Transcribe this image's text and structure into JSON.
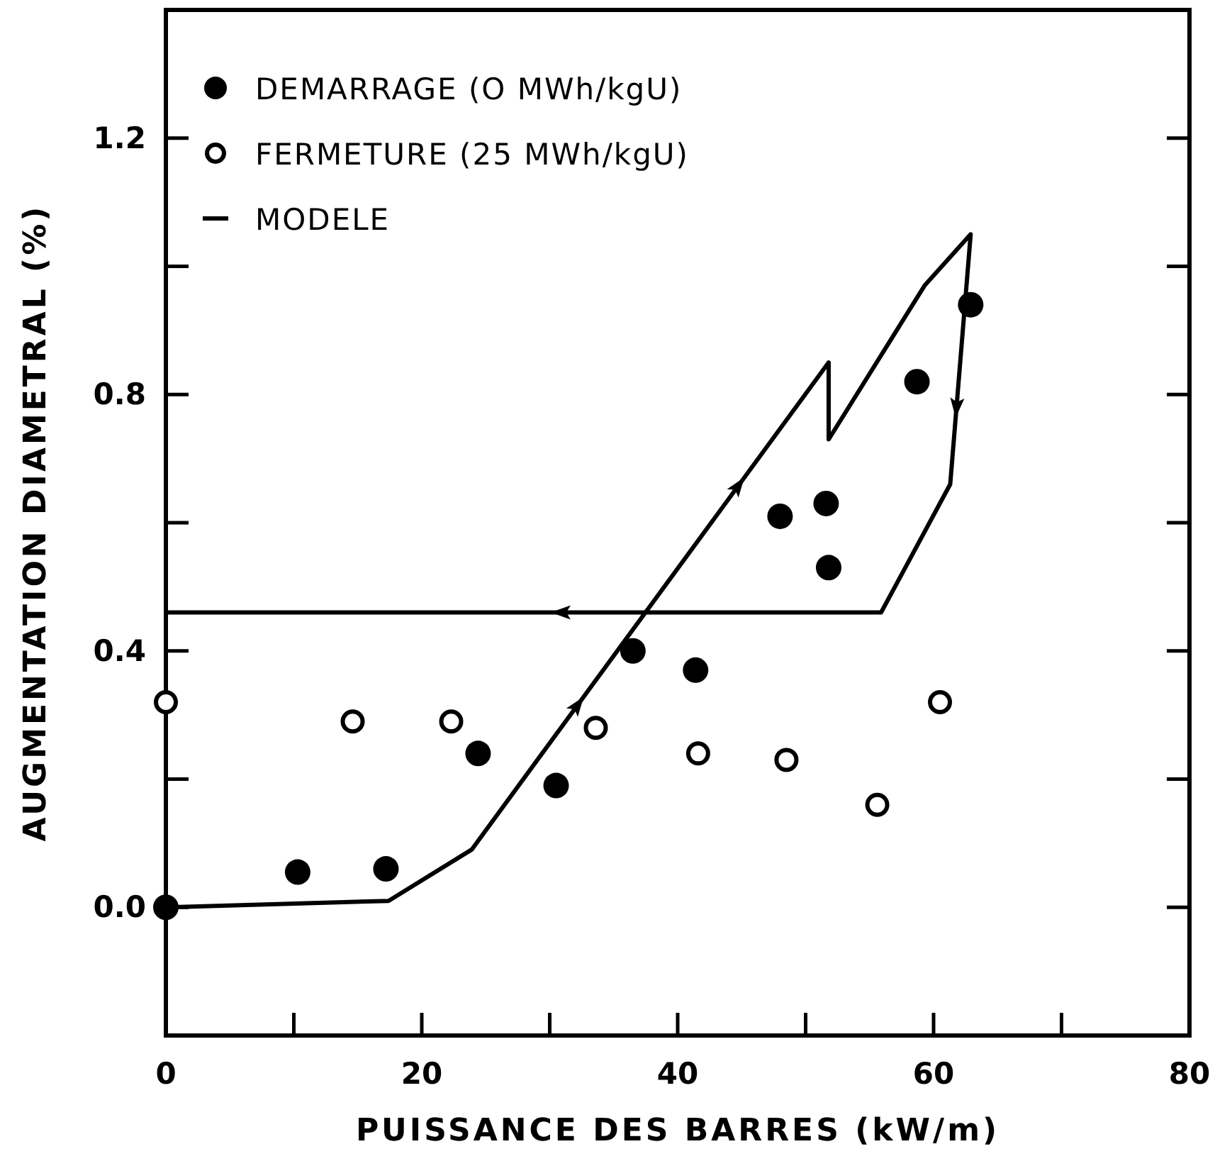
{
  "chart_data": {
    "type": "scatter",
    "xlabel": "PUISSANCE DES BARRES (kW/m)",
    "ylabel": "AUGMENTATION DIAMETRAL (%)",
    "xlim": [
      0,
      80
    ],
    "xticks": [
      0,
      {
        "value": 10,
        "label": null
      },
      20,
      {
        "value": 30,
        "label": null
      },
      40,
      {
        "value": 50,
        "label": null
      },
      60,
      {
        "value": 70,
        "label": null
      },
      80
    ],
    "ylim": [
      -0.2,
      1.4
    ],
    "yticks": [
      {
        "value": -0.2,
        "label": null
      },
      "0.0",
      {
        "value": 0.2,
        "label": null
      },
      0.4,
      {
        "value": 0.6,
        "label": null
      },
      0.8,
      {
        "value": 1.0,
        "label": null
      },
      1.2
    ],
    "legend": "top left",
    "grid": false,
    "marker": "circle",
    "series": [
      {
        "name": "DEMARRAGE (O MWh/kgU)",
        "color": "#000000",
        "x": [
          0,
          10.3,
          17.2,
          24.4,
          30.5,
          36.5,
          41.4,
          48.0,
          51.6,
          51.8,
          58.7,
          62.9
        ],
        "values": [
          0,
          0.055,
          0.06,
          0.24,
          0.19,
          0.4,
          0.37,
          0.61,
          0.63,
          0.53,
          0.82,
          0.94
        ]
      },
      {
        "name": "FERMETURE (25 MWh/kgU)",
        "color": "#ffffff",
        "x": [
          0,
          14.6,
          22.3,
          33.6,
          41.6,
          48.5,
          55.6,
          60.5
        ],
        "values": [
          0.32,
          0.29,
          0.29,
          0.28,
          0.24,
          0.23,
          0.16,
          0.32
        ]
      },
      {
        "name": "MODELE",
        "type": "line",
        "color": "#000000",
        "marker": "none",
        "line_style": "solid",
        "x": [
          0,
          17.4,
          23.9,
          51.8,
          51.8,
          59.3,
          62.9,
          61.3,
          55.9,
          0
        ],
        "values": [
          0,
          0.01,
          0.09,
          0.85,
          0.73,
          0.97,
          1.05,
          0.66,
          0.46,
          0.46
        ]
      }
    ]
  }
}
